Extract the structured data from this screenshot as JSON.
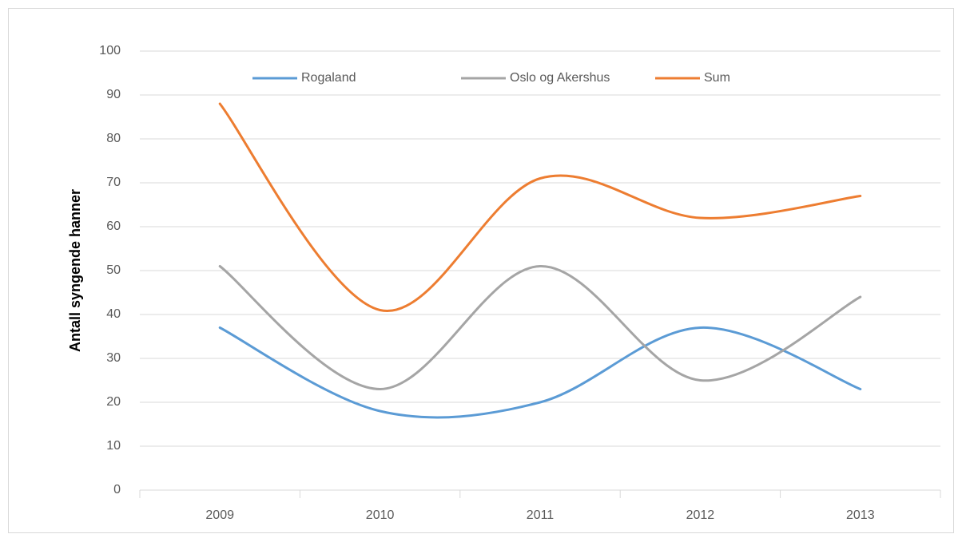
{
  "chart_data": {
    "type": "line",
    "ylabel": "Antall syngende hanner",
    "categories": [
      "2009",
      "2010",
      "2011",
      "2012",
      "2013"
    ],
    "series": [
      {
        "name": "Rogaland",
        "color": "#5b9bd5",
        "values": [
          37,
          18,
          20,
          37,
          23
        ]
      },
      {
        "name": "Oslo og Akershus",
        "color": "#a5a5a5",
        "values": [
          51,
          23,
          51,
          25,
          44
        ]
      },
      {
        "name": "Sum",
        "color": "#ed7d31",
        "values": [
          88,
          41,
          71,
          62,
          67
        ]
      }
    ],
    "ylim": [
      0,
      100
    ],
    "yticks": [
      0,
      10,
      20,
      30,
      40,
      50,
      60,
      70,
      80,
      90,
      100
    ],
    "grid": true,
    "smooth": true,
    "legend": "top"
  }
}
